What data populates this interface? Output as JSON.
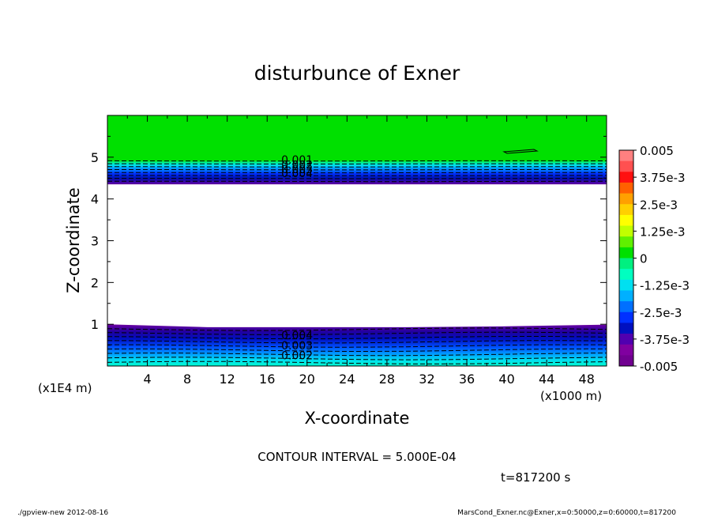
{
  "chart_data": {
    "type": "contour",
    "title": "disturbunce of Exner",
    "xlabel": "X-coordinate",
    "ylabel": "Z-coordinate",
    "x_unit_note": "(x1000 m)",
    "y_unit_note": "(x1E4 m)",
    "xlim": [
      0,
      50
    ],
    "ylim": [
      0,
      6
    ],
    "x_ticks": [
      4,
      8,
      12,
      16,
      20,
      24,
      28,
      32,
      36,
      40,
      44,
      48
    ],
    "y_ticks": [
      1,
      2,
      3,
      4,
      5
    ],
    "upper_band": {
      "z_bottom": 4.35,
      "z_top": 4.92
    },
    "lower_band": {
      "z_bottom": 0.0,
      "z_top_edge": [
        1.0,
        0.93,
        0.93,
        0.93,
        0.95,
        0.99
      ]
    },
    "contour_labels": [
      {
        "text": "0.001",
        "x": 19.0,
        "z": 4.88
      },
      {
        "text": "0.002",
        "x": 19.0,
        "z": 4.76
      },
      {
        "text": "0.003",
        "x": 19.0,
        "z": 4.66
      },
      {
        "text": "0.004",
        "x": 19.0,
        "z": 4.56
      },
      {
        "text": "0.004",
        "x": 19.0,
        "z": 0.68
      },
      {
        "text": "0.003",
        "x": 19.0,
        "z": 0.44
      },
      {
        "text": "0.002",
        "x": 19.0,
        "z": 0.2
      }
    ],
    "colorbar": {
      "min": -0.005,
      "max": 0.005,
      "labels": [
        "0.005",
        "3.75e-3",
        "2.5e-3",
        "1.25e-3",
        "0",
        "-1.25e-3",
        "-2.5e-3",
        "-3.75e-3",
        "-0.005"
      ],
      "colors": [
        "#ff8080",
        "#ff5050",
        "#ff1010",
        "#ff6000",
        "#ffa000",
        "#ffd000",
        "#ffff00",
        "#c0ff00",
        "#60f000",
        "#00e000",
        "#00f080",
        "#00ffc0",
        "#00e0f0",
        "#00b0ff",
        "#0070ff",
        "#0030ff",
        "#0010c0",
        "#5000b0",
        "#8000a0",
        "#700090"
      ]
    },
    "contour_interval": "CONTOUR INTERVAL = 5.000E-04",
    "time": "t=817200 s"
  },
  "footer": {
    "left": "./gpview-new   2012-08-16",
    "right": "MarsCond_Exner.nc@Exner,x=0:50000,z=0:60000,t=817200"
  }
}
